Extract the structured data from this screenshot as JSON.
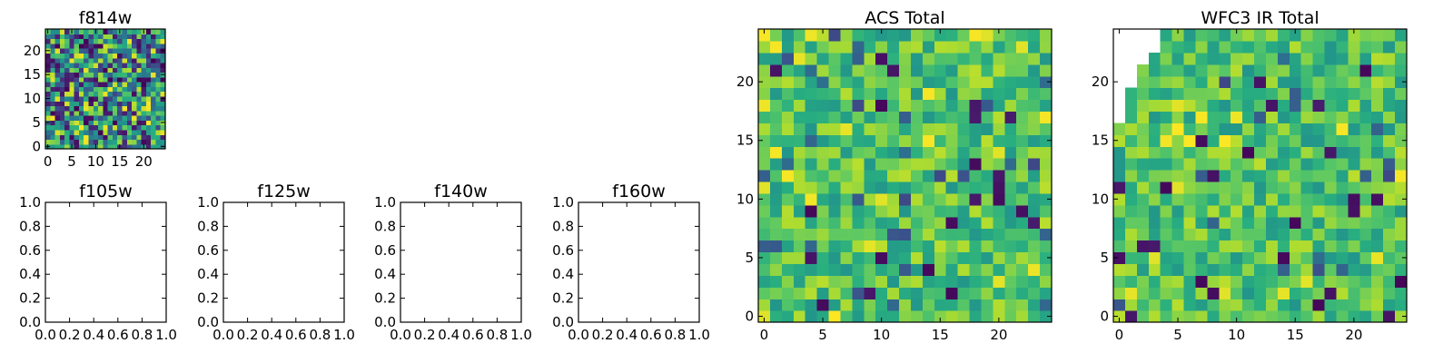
{
  "chart_data": [
    {
      "id": "f814w",
      "type": "heatmap",
      "title": "f814w",
      "colormap": "viridis",
      "grid_size": 25,
      "xlim": [
        -0.5,
        24.5
      ],
      "ylim": [
        -0.5,
        24.5
      ],
      "xticks": [
        0,
        5,
        10,
        15,
        20
      ],
      "xtick_labels": [
        "0",
        "5",
        "10",
        "15",
        "20"
      ],
      "yticks": [
        0,
        5,
        10,
        15,
        20
      ],
      "ytick_labels": [
        "0",
        "5",
        "10",
        "15",
        "20"
      ],
      "value_range": [
        0,
        1
      ],
      "seed": 11,
      "style": "noise",
      "masked_cells": []
    },
    {
      "id": "f105w",
      "type": "empty",
      "title": "f105w",
      "xlim": [
        0,
        1
      ],
      "ylim": [
        0,
        1
      ],
      "xticks": [
        0,
        0.2,
        0.4,
        0.6,
        0.8,
        1.0
      ],
      "xtick_labels": [
        "0.0",
        "0.2",
        "0.4",
        "0.6",
        "0.8",
        "1.0"
      ],
      "yticks": [
        0,
        0.2,
        0.4,
        0.6,
        0.8,
        1.0
      ],
      "ytick_labels": [
        "0.0",
        "0.2",
        "0.4",
        "0.6",
        "0.8",
        "1.0"
      ]
    },
    {
      "id": "f125w",
      "type": "empty",
      "title": "f125w",
      "xlim": [
        0,
        1
      ],
      "ylim": [
        0,
        1
      ],
      "xticks": [
        0,
        0.2,
        0.4,
        0.6,
        0.8,
        1.0
      ],
      "xtick_labels": [
        "0.0",
        "0.2",
        "0.4",
        "0.6",
        "0.8",
        "1.0"
      ],
      "yticks": [
        0,
        0.2,
        0.4,
        0.6,
        0.8,
        1.0
      ],
      "ytick_labels": [
        "0.0",
        "0.2",
        "0.4",
        "0.6",
        "0.8",
        "1.0"
      ]
    },
    {
      "id": "f140w",
      "type": "empty",
      "title": "f140w",
      "xlim": [
        0,
        1
      ],
      "ylim": [
        0,
        1
      ],
      "xticks": [
        0,
        0.2,
        0.4,
        0.6,
        0.8,
        1.0
      ],
      "xtick_labels": [
        "0.0",
        "0.2",
        "0.4",
        "0.6",
        "0.8",
        "1.0"
      ],
      "yticks": [
        0,
        0.2,
        0.4,
        0.6,
        0.8,
        1.0
      ],
      "ytick_labels": [
        "0.0",
        "0.2",
        "0.4",
        "0.6",
        "0.8",
        "1.0"
      ]
    },
    {
      "id": "f160w",
      "type": "empty",
      "title": "f160w",
      "xlim": [
        0,
        1
      ],
      "ylim": [
        0,
        1
      ],
      "xticks": [
        0,
        0.2,
        0.4,
        0.6,
        0.8,
        1.0
      ],
      "xtick_labels": [
        "0.0",
        "0.2",
        "0.4",
        "0.6",
        "0.8",
        "1.0"
      ],
      "yticks": [
        0,
        0.2,
        0.4,
        0.6,
        0.8,
        1.0
      ],
      "ytick_labels": [
        "0.0",
        "0.2",
        "0.4",
        "0.6",
        "0.8",
        "1.0"
      ]
    },
    {
      "id": "acs-total",
      "type": "heatmap",
      "title": "ACS Total",
      "colormap": "viridis",
      "grid_size": 25,
      "xlim": [
        -0.5,
        24.5
      ],
      "ylim": [
        -0.5,
        24.5
      ],
      "xticks": [
        0,
        5,
        10,
        15,
        20
      ],
      "xtick_labels": [
        "0",
        "5",
        "10",
        "15",
        "20"
      ],
      "yticks": [
        0,
        5,
        10,
        15,
        20
      ],
      "ytick_labels": [
        "0",
        "5",
        "10",
        "15",
        "20"
      ],
      "value_range": [
        0,
        1
      ],
      "seed": 23,
      "style": "skewed",
      "masked_cells": []
    },
    {
      "id": "wfc3-ir-total",
      "type": "heatmap",
      "title": "WFC3 IR Total",
      "colormap": "viridis",
      "grid_size": 25,
      "xlim": [
        -0.5,
        24.5
      ],
      "ylim": [
        -0.5,
        24.5
      ],
      "xticks": [
        0,
        5,
        10,
        15,
        20
      ],
      "xtick_labels": [
        "0",
        "5",
        "10",
        "15",
        "20"
      ],
      "yticks": [
        0,
        5,
        10,
        15,
        20
      ],
      "ytick_labels": [
        "0",
        "5",
        "10",
        "15",
        "20"
      ],
      "value_range": [
        0,
        1
      ],
      "seed": 37,
      "style": "skewed",
      "masked_cells": [
        {
          "row": 24,
          "cols": [
            0,
            1,
            2,
            3
          ]
        },
        {
          "row": 23,
          "cols": [
            0,
            1,
            2,
            3
          ]
        },
        {
          "row": 22,
          "cols": [
            0,
            1,
            2
          ]
        },
        {
          "row": 21,
          "cols": [
            0,
            1
          ]
        },
        {
          "row": 20,
          "cols": [
            0,
            1
          ]
        },
        {
          "row": 19,
          "cols": [
            0
          ]
        },
        {
          "row": 18,
          "cols": [
            0
          ]
        },
        {
          "row": 17,
          "cols": [
            0
          ]
        }
      ]
    }
  ]
}
